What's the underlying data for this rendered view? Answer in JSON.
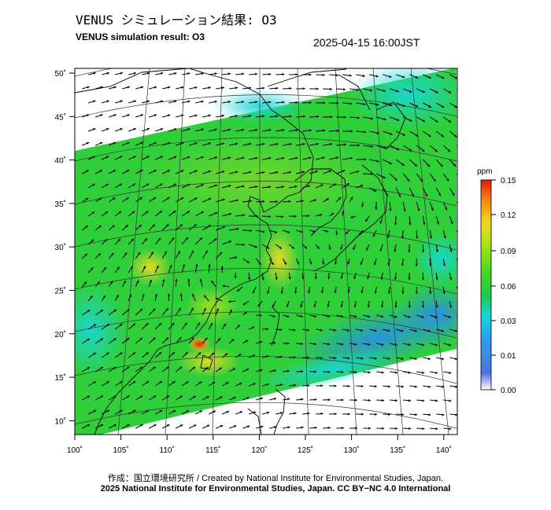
{
  "header": {
    "title_jp": "VENUS シミュレーション結果: O3",
    "title_en": "VENUS simulation result: O3",
    "timestamp": "2025-04-15 16:00JST"
  },
  "map": {
    "lon_ticks": [
      "100˚",
      "105˚",
      "110˚",
      "115˚",
      "120˚",
      "125˚",
      "130˚",
      "135˚",
      "140˚"
    ],
    "lat_ticks": [
      "50˚",
      "45˚",
      "40˚",
      "35˚",
      "30˚",
      "25˚",
      "20˚",
      "15˚",
      "10˚"
    ],
    "ocean_color": "#ffffff",
    "coast_color": "#000000",
    "vector_color": "#000000"
  },
  "colorbar": {
    "unit": "ppm",
    "ticks": [
      "0.15",
      "0.12",
      "0.09",
      "0.06",
      "0.03",
      "0.01",
      "0.00"
    ],
    "colors": [
      "#ffffff",
      "#3f6fe0",
      "#20b0ee",
      "#18d9d2",
      "#1ec948",
      "#5fdc1b",
      "#b6e31c",
      "#f1d81f",
      "#f38a16",
      "#e11c0a"
    ]
  },
  "footer": {
    "credit_jp": "作成：国立環境研究所 / Created by National Institute for Environmental Studies, Japan.",
    "copyright": "2025 National Institute for Environmental Studies, Japan. CC BY−NC 4.0 International"
  }
}
